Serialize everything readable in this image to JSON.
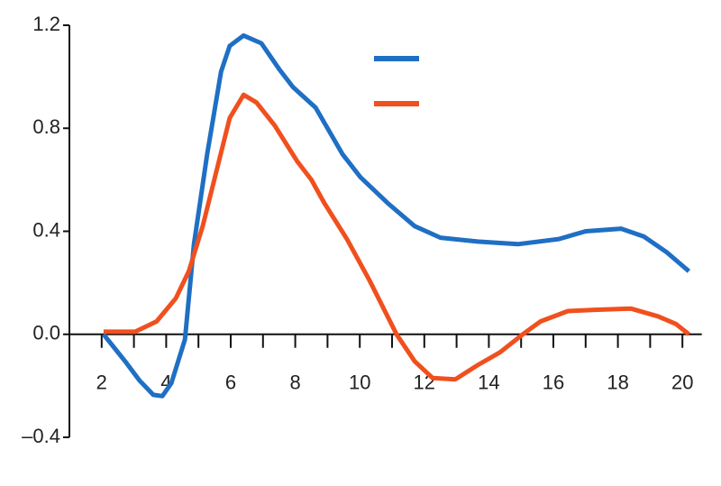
{
  "chart_data": {
    "type": "line",
    "xlim": [
      1,
      20.6
    ],
    "ylim": [
      -0.4,
      1.2
    ],
    "xticks": [
      2,
      4,
      6,
      8,
      10,
      12,
      14,
      16,
      18,
      20
    ],
    "xminorticks": [
      3,
      5,
      7,
      9,
      11,
      13,
      15,
      17,
      19
    ],
    "yticks": [
      {
        "value": -0.4,
        "label": "–0.4"
      },
      {
        "value": 0,
        "label": "0.0"
      },
      0.4,
      0.8,
      1.2
    ],
    "series": [
      {
        "color": "#1f6fc4",
        "x": [
          2.06,
          2.76,
          3.18,
          3.6,
          3.88,
          4.16,
          4.58,
          4.86,
          5.27,
          5.7,
          5.97,
          6.4,
          6.95,
          7.5,
          7.93,
          8.63,
          9.46,
          10.02,
          10.86,
          11.7,
          12.5,
          13.65,
          14.9,
          16.17,
          17.0,
          18.1,
          18.8,
          19.5,
          20.2
        ],
        "values": [
          0,
          -0.11,
          -0.18,
          -0.235,
          -0.24,
          -0.19,
          -0.02,
          0.35,
          0.7,
          1.02,
          1.12,
          1.16,
          1.13,
          1.03,
          0.96,
          0.88,
          0.7,
          0.61,
          0.51,
          0.42,
          0.375,
          0.36,
          0.35,
          0.37,
          0.4,
          0.41,
          0.38,
          0.32,
          0.245
        ]
      },
      {
        "color": "#f0501e",
        "x": [
          2.06,
          3.04,
          3.7,
          4.3,
          4.7,
          5.13,
          5.55,
          5.97,
          6.4,
          6.8,
          7.37,
          8.07,
          8.5,
          8.9,
          9.6,
          10.3,
          11.14,
          11.7,
          12.26,
          12.96,
          13.65,
          14.35,
          15.05,
          15.6,
          16.45,
          17.28,
          18.4,
          19.24,
          19.8,
          20.2
        ],
        "values": [
          0.01,
          0.01,
          0.05,
          0.14,
          0.245,
          0.42,
          0.63,
          0.84,
          0.93,
          0.9,
          0.81,
          0.67,
          0.6,
          0.51,
          0.37,
          0.21,
          0,
          -0.105,
          -0.17,
          -0.175,
          -0.12,
          -0.07,
          0,
          0.05,
          0.09,
          0.095,
          0.1,
          0.07,
          0.04,
          0
        ]
      }
    ]
  }
}
